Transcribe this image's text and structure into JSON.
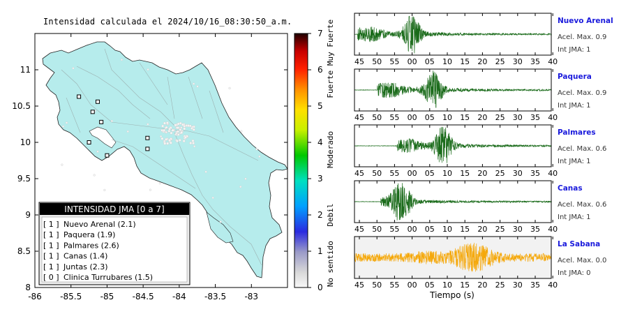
{
  "map": {
    "title": "Intensidad calculada el 2024/10/16_08:30:50_a.m.",
    "lon_ticks": [
      "-86",
      "-85.5",
      "-85",
      "-84.5",
      "-84",
      "-83.5",
      "-83"
    ],
    "lat_ticks": [
      "8",
      "8.5",
      "9",
      "9.5",
      "10",
      "10.5",
      "11"
    ],
    "xlim": [
      -86,
      -82.5
    ],
    "ylim": [
      8,
      11.5
    ],
    "legend": {
      "header": "INTENSIDAD JMA [0 a 7]",
      "items": [
        {
          "level": "[ 1 ]",
          "name": "Nuevo Arenal (2.1)"
        },
        {
          "level": "[ 1 ]",
          "name": "Paquera (1.9)"
        },
        {
          "level": "[ 1 ]",
          "name": "Palmares (2.6)"
        },
        {
          "level": "[ 1 ]",
          "name": "Canas (1.4)"
        },
        {
          "level": "[ 1 ]",
          "name": "Juntas (2.3)"
        },
        {
          "level": "[ 0 ]",
          "name": "Clinica Turrubares (1.5)"
        }
      ]
    },
    "stations": [
      {
        "lon": -85.39,
        "lat": 10.63
      },
      {
        "lon": -85.13,
        "lat": 10.56
      },
      {
        "lon": -85.2,
        "lat": 10.42
      },
      {
        "lon": -85.08,
        "lat": 10.28
      },
      {
        "lon": -85.25,
        "lat": 10.0
      },
      {
        "lon": -84.44,
        "lat": 10.06
      },
      {
        "lon": -84.44,
        "lat": 9.91
      },
      {
        "lon": -85.0,
        "lat": 9.82
      }
    ],
    "land_color": "#b6ecec",
    "marker_color": "#f5f5f5"
  },
  "colorbar": {
    "ticks": [
      "0",
      "1",
      "2",
      "3",
      "4",
      "5",
      "6",
      "7"
    ],
    "labels": [
      "No sentido",
      "Debil",
      "Moderado",
      "Fuerte",
      "Muy Fuerte"
    ],
    "range": [
      0,
      7
    ]
  },
  "chart_data": {
    "type": "line",
    "xlabel": "Tiempo (s)",
    "x_tick_labels": [
      "45",
      "50",
      "55",
      "00",
      "05",
      "10",
      "15",
      "20",
      "25",
      "30",
      "35",
      "40"
    ],
    "series": [
      {
        "name": "Nuevo Arenal",
        "acel_label": "Acel. Max. 0.9",
        "int_label": "Int JMA: 1",
        "color": "#1a6b1a",
        "name_color": "#1a1adc",
        "onset_s": 1.0,
        "peak_s": 17.5
      },
      {
        "name": "Paquera",
        "acel_label": "Acel. Max. 0.9",
        "int_label": "Int JMA: 1",
        "color": "#1a6b1a",
        "name_color": "#1a1adc",
        "onset_s": 7.0,
        "peak_s": 24.0
      },
      {
        "name": "Palmares",
        "acel_label": "Acel. Max. 0.6",
        "int_label": "Int JMA: 1",
        "color": "#1a6b1a",
        "name_color": "#1a1adc",
        "onset_s": 13.0,
        "peak_s": 27.0
      },
      {
        "name": "Canas",
        "acel_label": "Acel. Max. 0.6",
        "int_label": "Int JMA: 1",
        "color": "#1a6b1a",
        "name_color": "#1a1adc",
        "onset_s": 8.0,
        "peak_s": 14.5
      },
      {
        "name": "La Sabana",
        "acel_label": "Acel. Max. 0.0",
        "int_label": "Int JMA: 0",
        "color": "#f5a80a",
        "name_color": "#1a1adc",
        "onset_s": 0.0,
        "peak_s": 36.0
      }
    ]
  }
}
